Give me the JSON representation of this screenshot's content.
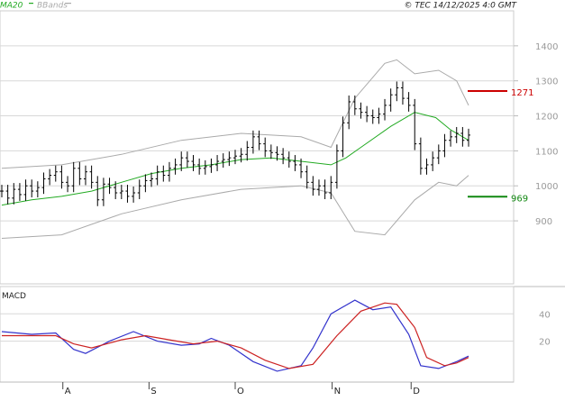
{
  "header": {
    "ma_label": "MA20",
    "bb_label": "BBands",
    "source_label": "© TEC 14/12/2025 4:0 GMT"
  },
  "colors": {
    "price_bars": "#000000",
    "ma20": "#22aa22",
    "bbands": "#aaaaaa",
    "resistance": "#cc0000",
    "support": "#118811",
    "macd_line": "#3333cc",
    "signal_line": "#cc2222",
    "grid": "#d8d8d8",
    "axis_text": "#9a9a9a"
  },
  "chart_data": [
    {
      "type": "ohlc",
      "panel": "price",
      "yticks": [
        "900",
        "1000",
        "1100",
        "1200",
        "1300",
        "1400"
      ],
      "ylim": [
        720,
        1500
      ],
      "grid": true,
      "legend": [
        "MA20",
        "BBands"
      ],
      "levels": [
        {
          "label": "1271",
          "value": 1271
        },
        {
          "label": "969",
          "value": 969
        }
      ],
      "price": [
        [
          0,
          985
        ],
        [
          2,
          965
        ],
        [
          4,
          990
        ],
        [
          6,
          975
        ],
        [
          8,
          1000
        ],
        [
          10,
          985
        ],
        [
          12,
          995
        ],
        [
          14,
          1020
        ],
        [
          16,
          1030
        ],
        [
          18,
          1040
        ],
        [
          20,
          1010
        ],
        [
          22,
          1000
        ],
        [
          24,
          1050
        ],
        [
          26,
          1020
        ],
        [
          28,
          1040
        ],
        [
          30,
          1010
        ],
        [
          32,
          960
        ],
        [
          34,
          1005
        ],
        [
          36,
          995
        ],
        [
          38,
          980
        ],
        [
          40,
          985
        ],
        [
          42,
          970
        ],
        [
          44,
          980
        ],
        [
          46,
          1000
        ],
        [
          48,
          1015
        ],
        [
          50,
          1020
        ],
        [
          52,
          1040
        ],
        [
          54,
          1030
        ],
        [
          56,
          1050
        ],
        [
          58,
          1060
        ],
        [
          60,
          1080
        ],
        [
          62,
          1070
        ],
        [
          64,
          1060
        ],
        [
          66,
          1050
        ],
        [
          68,
          1055
        ],
        [
          70,
          1060
        ],
        [
          72,
          1070
        ],
        [
          74,
          1075
        ],
        [
          76,
          1080
        ],
        [
          78,
          1085
        ],
        [
          80,
          1090
        ],
        [
          82,
          1110
        ],
        [
          84,
          1140
        ],
        [
          86,
          1120
        ],
        [
          88,
          1100
        ],
        [
          90,
          1095
        ],
        [
          92,
          1090
        ],
        [
          94,
          1080
        ],
        [
          96,
          1070
        ],
        [
          98,
          1060
        ],
        [
          100,
          1040
        ],
        [
          102,
          1010
        ],
        [
          104,
          990
        ],
        [
          106,
          1000
        ],
        [
          108,
          980
        ],
        [
          110,
          1010
        ],
        [
          112,
          1100
        ],
        [
          114,
          1180
        ],
        [
          116,
          1240
        ],
        [
          118,
          1220
        ],
        [
          120,
          1210
        ],
        [
          122,
          1200
        ],
        [
          124,
          1195
        ],
        [
          126,
          1205
        ],
        [
          128,
          1230
        ],
        [
          130,
          1260
        ],
        [
          132,
          1280
        ],
        [
          134,
          1250
        ],
        [
          136,
          1230
        ],
        [
          138,
          1120
        ],
        [
          140,
          1050
        ],
        [
          142,
          1060
        ],
        [
          144,
          1080
        ],
        [
          146,
          1100
        ],
        [
          148,
          1130
        ],
        [
          150,
          1140
        ],
        [
          152,
          1150
        ],
        [
          154,
          1130
        ],
        [
          156,
          1145
        ]
      ],
      "ma20": [
        [
          0,
          945
        ],
        [
          10,
          960
        ],
        [
          20,
          970
        ],
        [
          30,
          985
        ],
        [
          40,
          1010
        ],
        [
          50,
          1035
        ],
        [
          60,
          1050
        ],
        [
          70,
          1060
        ],
        [
          80,
          1075
        ],
        [
          90,
          1080
        ],
        [
          100,
          1070
        ],
        [
          110,
          1060
        ],
        [
          115,
          1080
        ],
        [
          120,
          1110
        ],
        [
          130,
          1170
        ],
        [
          138,
          1210
        ],
        [
          145,
          1195
        ],
        [
          150,
          1160
        ],
        [
          156,
          1130
        ]
      ],
      "bband_upper": [
        [
          0,
          1050
        ],
        [
          20,
          1060
        ],
        [
          40,
          1090
        ],
        [
          60,
          1130
        ],
        [
          80,
          1150
        ],
        [
          100,
          1140
        ],
        [
          110,
          1110
        ],
        [
          118,
          1250
        ],
        [
          128,
          1350
        ],
        [
          132,
          1360
        ],
        [
          138,
          1320
        ],
        [
          146,
          1330
        ],
        [
          152,
          1300
        ],
        [
          156,
          1230
        ]
      ],
      "bband_lower": [
        [
          0,
          850
        ],
        [
          20,
          860
        ],
        [
          40,
          920
        ],
        [
          60,
          960
        ],
        [
          80,
          990
        ],
        [
          100,
          1000
        ],
        [
          110,
          980
        ],
        [
          118,
          870
        ],
        [
          128,
          860
        ],
        [
          138,
          960
        ],
        [
          146,
          1010
        ],
        [
          152,
          1000
        ],
        [
          156,
          1030
        ]
      ]
    },
    {
      "type": "line",
      "panel": "macd",
      "title": "MACD",
      "yticks": [
        "20",
        "40"
      ],
      "ylim": [
        -10,
        60
      ],
      "series": [
        {
          "name": "MACD",
          "points": [
            [
              0,
              27
            ],
            [
              10,
              25
            ],
            [
              18,
              26
            ],
            [
              24,
              14
            ],
            [
              28,
              11
            ],
            [
              36,
              20
            ],
            [
              44,
              27
            ],
            [
              52,
              20
            ],
            [
              60,
              17
            ],
            [
              66,
              18
            ],
            [
              70,
              22
            ],
            [
              76,
              17
            ],
            [
              84,
              5
            ],
            [
              92,
              -2
            ],
            [
              100,
              2
            ],
            [
              104,
              15
            ],
            [
              110,
              40
            ],
            [
              118,
              50
            ],
            [
              124,
              43
            ],
            [
              130,
              45
            ],
            [
              136,
              25
            ],
            [
              140,
              2
            ],
            [
              146,
              0
            ],
            [
              152,
              5
            ],
            [
              156,
              9
            ]
          ]
        },
        {
          "name": "Signal",
          "points": [
            [
              0,
              24
            ],
            [
              10,
              24
            ],
            [
              18,
              24
            ],
            [
              24,
              18
            ],
            [
              30,
              15
            ],
            [
              40,
              21
            ],
            [
              48,
              24
            ],
            [
              56,
              21
            ],
            [
              64,
              18
            ],
            [
              72,
              20
            ],
            [
              80,
              15
            ],
            [
              88,
              6
            ],
            [
              96,
              0
            ],
            [
              104,
              3
            ],
            [
              112,
              24
            ],
            [
              120,
              42
            ],
            [
              128,
              48
            ],
            [
              132,
              47
            ],
            [
              138,
              30
            ],
            [
              142,
              8
            ],
            [
              148,
              2
            ],
            [
              152,
              4
            ],
            [
              156,
              8
            ]
          ]
        }
      ]
    }
  ],
  "x_axis": {
    "month_labels": [
      {
        "label": "A",
        "x": 12
      },
      {
        "label": "S",
        "x": 36
      },
      {
        "label": "O",
        "x": 60
      },
      {
        "label": "N",
        "x": 87
      },
      {
        "label": "D",
        "x": 109
      }
    ]
  }
}
